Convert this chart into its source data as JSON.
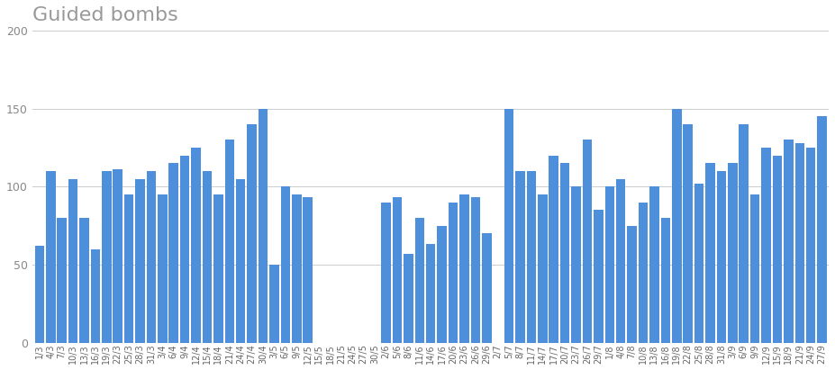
{
  "title": "Guided bombs",
  "bar_color": "#4d8fdb",
  "background_color": "#ffffff",
  "ylim": [
    0,
    200
  ],
  "yticks": [
    0,
    50,
    100,
    150,
    200
  ],
  "title_fontsize": 16,
  "title_color": "#999999",
  "labels": [
    "1/3",
    "4/3",
    "7/3",
    "10/3",
    "13/3",
    "16/3",
    "19/3",
    "22/3",
    "25/3",
    "28/3",
    "31/3",
    "3/4",
    "6/4",
    "9/4",
    "12/4",
    "15/4",
    "18/4",
    "21/4",
    "24/4",
    "27/4",
    "30/4",
    "3/5",
    "6/5",
    "9/5",
    "12/5",
    "15/5",
    "18/5",
    "21/5",
    "24/5",
    "27/5",
    "30/5",
    "2/6",
    "5/6",
    "8/6",
    "11/6",
    "14/6",
    "17/6",
    "20/6",
    "23/6",
    "26/6",
    "29/6",
    "2/7",
    "5/7",
    "8/7",
    "11/7",
    "14/7",
    "17/7",
    "20/7",
    "23/7",
    "26/7",
    "29/7",
    "1/8",
    "4/8",
    "7/8",
    "10/8",
    "13/8",
    "16/8",
    "19/8",
    "22/8",
    "25/8",
    "28/8",
    "31/8",
    "3/9",
    "6/9",
    "9/9",
    "12/9",
    "15/9",
    "18/9",
    "21/9",
    "24/9",
    "27/9"
  ],
  "values": [
    62,
    110,
    80,
    105,
    80,
    60,
    110,
    111,
    95,
    105,
    110,
    95,
    115,
    120,
    125,
    110,
    95,
    130,
    105,
    140,
    150,
    50,
    100,
    95,
    93,
    0,
    0,
    0,
    0,
    0,
    0,
    90,
    93,
    57,
    80,
    63,
    75,
    90,
    95,
    93,
    70,
    0,
    150,
    110,
    110,
    95,
    120,
    115,
    100,
    130,
    85,
    100,
    105,
    75,
    90,
    100,
    80,
    150,
    140,
    102,
    115,
    110,
    115,
    140,
    95,
    125,
    120,
    130,
    128,
    125,
    145
  ]
}
